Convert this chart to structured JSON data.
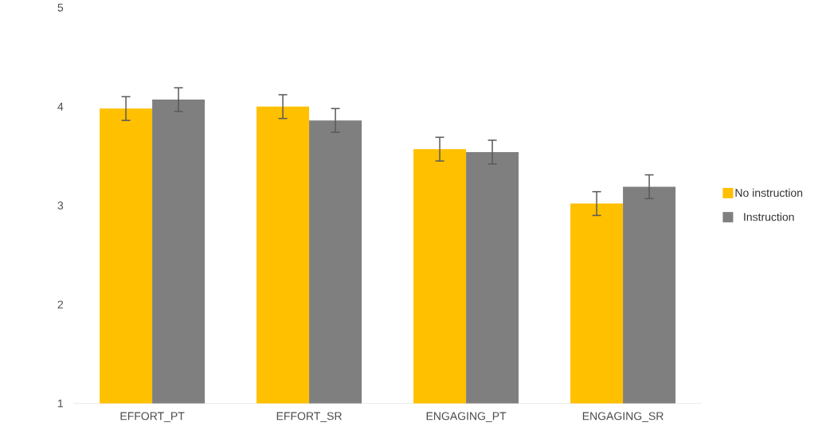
{
  "chart_data": {
    "type": "bar",
    "categories": [
      "EFFORT_PT",
      "EFFORT_SR",
      "ENGAGING_PT",
      "ENGAGING_SR"
    ],
    "series": [
      {
        "name": "No instruction",
        "color": "#ffc000",
        "values": [
          3.98,
          4.0,
          3.57,
          3.02
        ],
        "errors": [
          0.12,
          0.12,
          0.12,
          0.12
        ]
      },
      {
        "name": "Instruction",
        "color": "#7f7f7f",
        "values": [
          4.07,
          3.86,
          3.54,
          3.19
        ],
        "errors": [
          0.12,
          0.12,
          0.12,
          0.12
        ]
      }
    ],
    "ylim": [
      1,
      5
    ],
    "yticks": [
      1,
      2,
      3,
      4,
      5
    ],
    "grid": false,
    "legend": "right"
  }
}
